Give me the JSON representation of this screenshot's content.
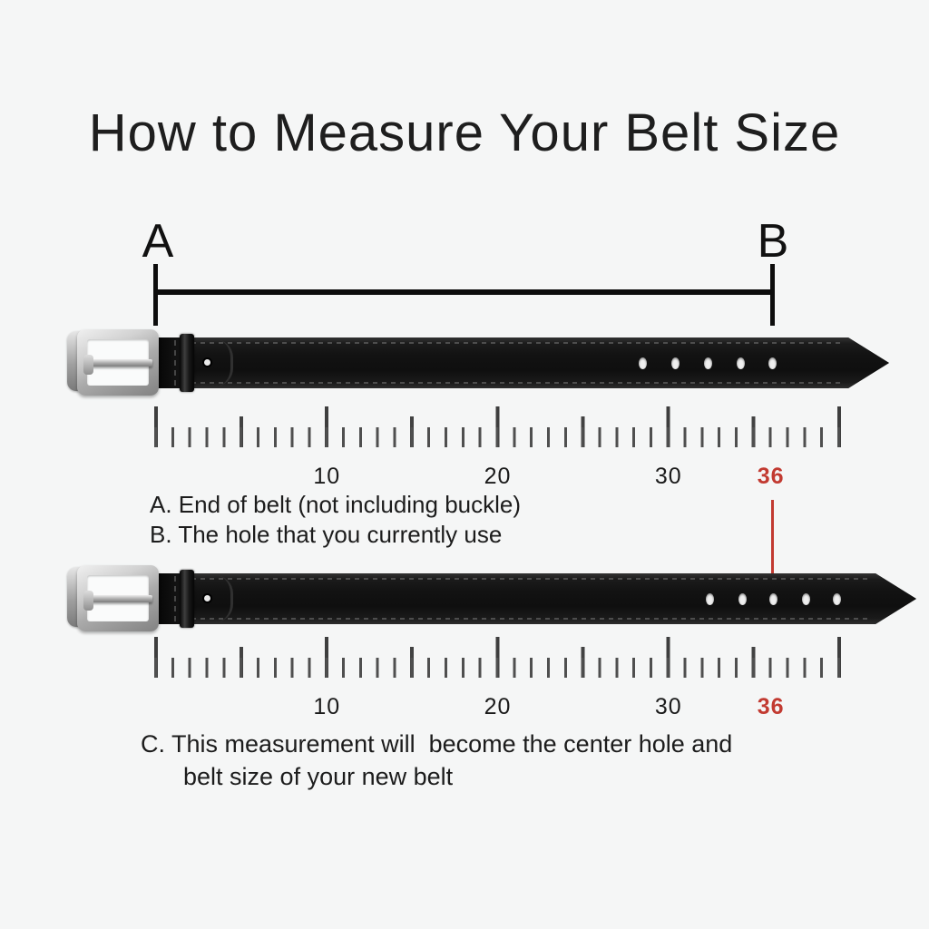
{
  "title": "How to Measure Your Belt Size",
  "bracket": {
    "label_a": "A",
    "label_b": "B"
  },
  "legend": {
    "line_a": "A. End of belt (not including buckle)",
    "line_b": "B. The hole that you currently use"
  },
  "note": {
    "line_1": "C. This measurement will  become the center hole and",
    "line_2": "belt size of your new belt"
  },
  "ruler": {
    "unit_min": 0,
    "unit_max": 40,
    "labels": [
      {
        "text": "10",
        "unit": 10,
        "highlight": false
      },
      {
        "text": "20",
        "unit": 20,
        "highlight": false
      },
      {
        "text": "30",
        "unit": 30,
        "highlight": false
      },
      {
        "text": "36",
        "unit": 36,
        "highlight": true
      }
    ]
  },
  "highlighted_size": "36",
  "colors": {
    "background": "#f5f6f6",
    "ink": "#1d1d1d",
    "tick_gray": "#444444",
    "accent_red": "#c23a31",
    "belt_black": "#141414",
    "buckle_silver": "#bfbfbf"
  }
}
